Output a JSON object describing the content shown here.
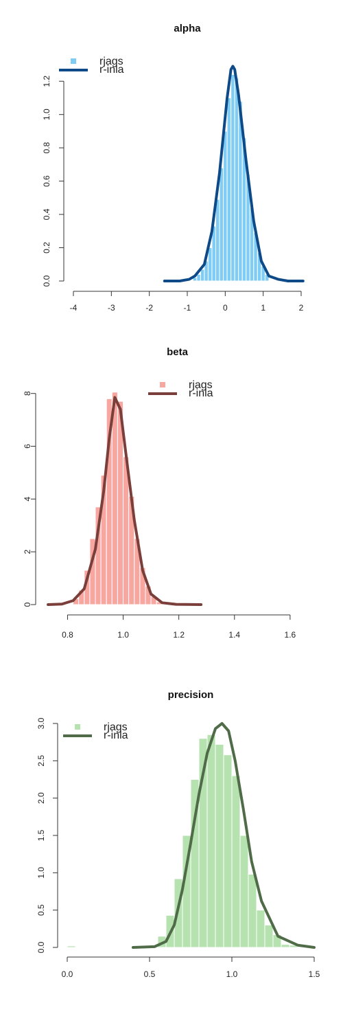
{
  "chart_data": [
    {
      "type": "bar",
      "title": "alpha",
      "hist_color": "#7fcdf5",
      "line_color": "#0d4a87",
      "xlim": [
        -4,
        2
      ],
      "ylim": [
        0,
        1.3
      ],
      "xticks": [
        "-4",
        "-3",
        "-2",
        "-1",
        "0",
        "1",
        "2"
      ],
      "yticks": [
        "0.0",
        "0.2",
        "0.4",
        "0.6",
        "0.8",
        "1.0",
        "1.2"
      ],
      "legend": [
        "rjags",
        "r-inla"
      ],
      "legend_position": "top-left",
      "histogram": {
        "bin_width": 0.1,
        "bins": [
          {
            "x": -0.8,
            "y": 0.02
          },
          {
            "x": -0.7,
            "y": 0.04
          },
          {
            "x": -0.6,
            "y": 0.07
          },
          {
            "x": -0.5,
            "y": 0.12
          },
          {
            "x": -0.4,
            "y": 0.2
          },
          {
            "x": -0.3,
            "y": 0.33
          },
          {
            "x": -0.2,
            "y": 0.49
          },
          {
            "x": -0.1,
            "y": 0.68
          },
          {
            "x": 0.0,
            "y": 0.9
          },
          {
            "x": 0.1,
            "y": 1.1
          },
          {
            "x": 0.2,
            "y": 1.24
          },
          {
            "x": 0.3,
            "y": 1.22
          },
          {
            "x": 0.4,
            "y": 1.08
          },
          {
            "x": 0.5,
            "y": 0.86
          },
          {
            "x": 0.6,
            "y": 0.64
          },
          {
            "x": 0.7,
            "y": 0.44
          },
          {
            "x": 0.8,
            "y": 0.29
          },
          {
            "x": 0.9,
            "y": 0.17
          },
          {
            "x": 1.0,
            "y": 0.09
          },
          {
            "x": 1.1,
            "y": 0.04
          }
        ]
      },
      "density": {
        "x": [
          -1.6,
          -1.2,
          -0.95,
          -0.8,
          -0.55,
          -0.35,
          -0.15,
          0.05,
          0.15,
          0.2,
          0.25,
          0.35,
          0.55,
          0.75,
          0.95,
          1.15,
          1.4,
          1.65,
          2.05
        ],
        "y": [
          0.0,
          0.0,
          0.01,
          0.03,
          0.1,
          0.3,
          0.65,
          1.1,
          1.27,
          1.29,
          1.27,
          1.12,
          0.72,
          0.36,
          0.12,
          0.03,
          0.01,
          0.0,
          0.0
        ]
      }
    },
    {
      "type": "bar",
      "title": "beta",
      "hist_color": "#f8a6a0",
      "line_color": "#7a3f3a",
      "xlim": [
        0.72,
        1.62
      ],
      "ylim": [
        0,
        8.2
      ],
      "xticks": [
        "0.8",
        "1.0",
        "1.2",
        "1.4",
        "1.6"
      ],
      "yticks": [
        "0",
        "2",
        "4",
        "6",
        "8"
      ],
      "legend": [
        "rjags",
        "r-inla"
      ],
      "legend_position": "top-right",
      "histogram": {
        "bin_width": 0.02,
        "bins": [
          {
            "x": 0.83,
            "y": 0.22
          },
          {
            "x": 0.85,
            "y": 0.55
          },
          {
            "x": 0.87,
            "y": 1.3
          },
          {
            "x": 0.89,
            "y": 2.5
          },
          {
            "x": 0.91,
            "y": 3.7
          },
          {
            "x": 0.93,
            "y": 4.9
          },
          {
            "x": 0.95,
            "y": 7.8
          },
          {
            "x": 0.97,
            "y": 8.05
          },
          {
            "x": 0.99,
            "y": 7.7
          },
          {
            "x": 1.01,
            "y": 5.6
          },
          {
            "x": 1.03,
            "y": 4.1
          },
          {
            "x": 1.05,
            "y": 2.5
          },
          {
            "x": 1.07,
            "y": 1.4
          },
          {
            "x": 1.09,
            "y": 0.7
          },
          {
            "x": 1.11,
            "y": 0.3
          },
          {
            "x": 1.13,
            "y": 0.1
          }
        ]
      },
      "density": {
        "x": [
          0.73,
          0.78,
          0.82,
          0.86,
          0.9,
          0.93,
          0.95,
          0.97,
          0.99,
          1.01,
          1.04,
          1.07,
          1.1,
          1.14,
          1.19,
          1.28
        ],
        "y": [
          0.0,
          0.02,
          0.15,
          0.6,
          2.1,
          4.3,
          6.3,
          7.85,
          7.4,
          5.7,
          3.2,
          1.3,
          0.4,
          0.07,
          0.01,
          0.0
        ]
      }
    },
    {
      "type": "bar",
      "title": "precision",
      "hist_color": "#b6e2b0",
      "line_color": "#4f6b48",
      "xlim": [
        0.0,
        1.5
      ],
      "ylim": [
        0,
        3.0
      ],
      "xticks": [
        "0.0",
        "0.5",
        "1.0",
        "1.5"
      ],
      "yticks": [
        "0.0",
        "0.5",
        "1.0",
        "1.5",
        "2.0",
        "2.5",
        "3.0"
      ],
      "legend": [
        "rjags",
        "r-inla"
      ],
      "legend_position": "top-left",
      "histogram": {
        "bin_width": 0.05,
        "bins": [
          {
            "x": 0.025,
            "y": 0.02
          },
          {
            "x": 0.575,
            "y": 0.15
          },
          {
            "x": 0.625,
            "y": 0.43
          },
          {
            "x": 0.675,
            "y": 0.92
          },
          {
            "x": 0.725,
            "y": 1.5
          },
          {
            "x": 0.775,
            "y": 2.25
          },
          {
            "x": 0.825,
            "y": 2.8
          },
          {
            "x": 0.875,
            "y": 2.85
          },
          {
            "x": 0.925,
            "y": 2.72
          },
          {
            "x": 0.975,
            "y": 2.58
          },
          {
            "x": 1.025,
            "y": 2.3
          },
          {
            "x": 1.075,
            "y": 1.5
          },
          {
            "x": 1.125,
            "y": 0.98
          },
          {
            "x": 1.175,
            "y": 0.5
          },
          {
            "x": 1.225,
            "y": 0.3
          },
          {
            "x": 1.275,
            "y": 0.17
          },
          {
            "x": 1.325,
            "y": 0.04
          },
          {
            "x": 1.375,
            "y": 0.03
          }
        ]
      },
      "density": {
        "x": [
          0.4,
          0.53,
          0.6,
          0.65,
          0.7,
          0.75,
          0.8,
          0.85,
          0.9,
          0.94,
          0.98,
          1.02,
          1.07,
          1.12,
          1.18,
          1.28,
          1.4,
          1.5
        ],
        "y": [
          0.0,
          0.01,
          0.08,
          0.3,
          0.78,
          1.4,
          2.05,
          2.6,
          2.93,
          3.0,
          2.9,
          2.5,
          1.85,
          1.15,
          0.62,
          0.15,
          0.03,
          0.0
        ]
      }
    }
  ]
}
